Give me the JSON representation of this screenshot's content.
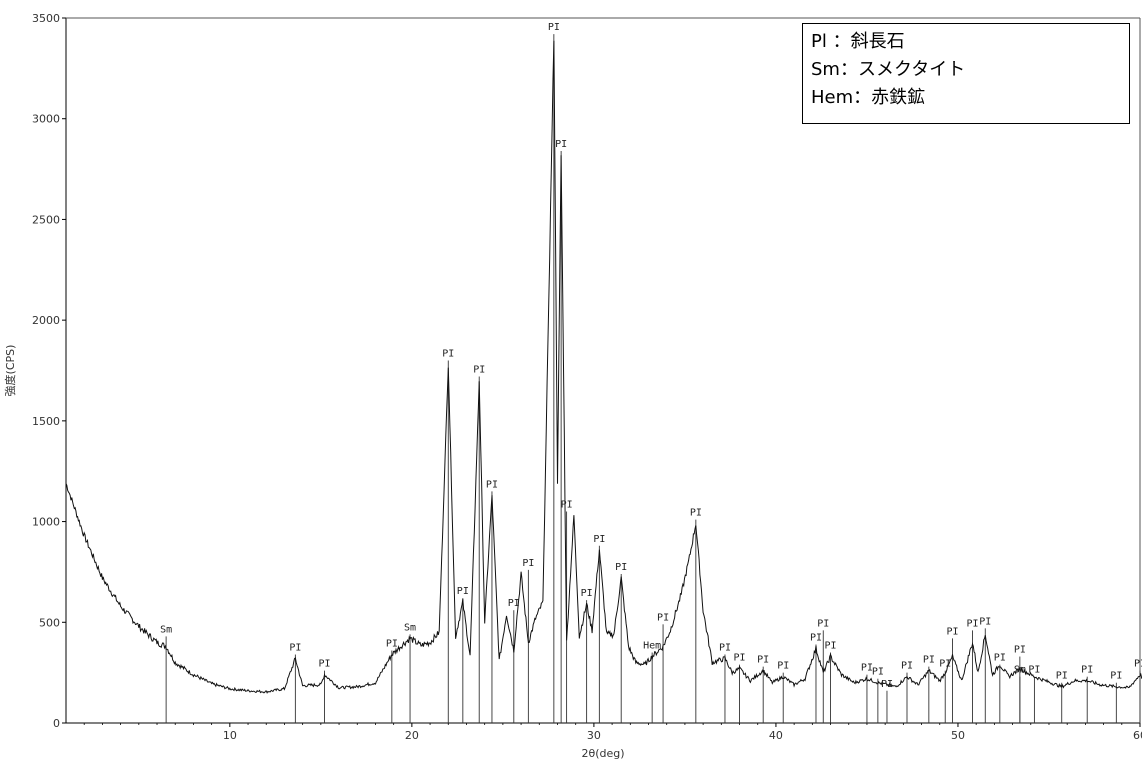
{
  "chart_data": {
    "type": "line",
    "title": "",
    "xlabel": "2θ(deg)",
    "ylabel": "強度(CPS)",
    "xlim": [
      1,
      60
    ],
    "ylim": [
      0,
      3500
    ],
    "x_ticks": [
      10,
      20,
      30,
      40,
      50,
      60
    ],
    "x_tick_labels": [
      "10",
      "20",
      "30",
      "40",
      "50",
      "60"
    ],
    "y_ticks": [
      0,
      500,
      1000,
      1500,
      2000,
      2500,
      3000,
      3500
    ],
    "y_tick_labels": [
      "0",
      "500",
      "1000",
      "1500",
      "2000",
      "2500",
      "3000",
      "3500"
    ],
    "legend": {
      "placement": "top-right",
      "entries": [
        "Pl ：斜長石",
        "Sm：スメクタイト",
        "Hem：赤鉄鉱"
      ]
    },
    "series": [
      {
        "x": [
          1,
          2,
          3,
          4,
          5,
          6,
          6.5,
          7,
          8,
          9,
          10,
          11,
          12,
          13,
          13.6,
          14,
          15,
          15.2,
          16,
          17,
          18,
          18.9,
          19.5,
          19.9,
          20.5,
          21,
          21.5,
          22.0,
          22.4,
          22.8,
          23.2,
          23.7,
          24.0,
          24.4,
          24.8,
          25.2,
          25.6,
          26.0,
          26.4,
          26.8,
          27.2,
          27.8,
          28.0,
          28.2,
          28.5,
          28.9,
          29.2,
          29.6,
          29.9,
          30.3,
          30.7,
          31.1,
          31.5,
          31.9,
          32.3,
          32.8,
          33.2,
          33.8,
          34.2,
          34.8,
          35.2,
          35.6,
          36.0,
          36.5,
          37.2,
          37.6,
          38.0,
          38.6,
          39.3,
          39.8,
          40.4,
          41.0,
          41.6,
          42.2,
          42.6,
          43.0,
          43.6,
          44.3,
          45.0,
          45.6,
          46.1,
          46.6,
          47.2,
          47.8,
          48.4,
          49.0,
          49.3,
          49.7,
          50.2,
          50.8,
          51.1,
          51.5,
          51.9,
          52.3,
          52.8,
          53.4,
          54.2,
          54.8,
          55.7,
          56.4,
          57.1,
          57.8,
          58.7,
          59.4,
          60.0,
          60.5
        ],
        "y": [
          1190,
          930,
          720,
          580,
          480,
          400,
          380,
          300,
          240,
          195,
          170,
          160,
          155,
          170,
          320,
          185,
          190,
          240,
          175,
          180,
          200,
          340,
          390,
          420,
          385,
          400,
          450,
          1780,
          430,
          600,
          330,
          1700,
          500,
          1130,
          310,
          540,
          360,
          740,
          400,
          520,
          600,
          3400,
          1200,
          2820,
          400,
          1030,
          430,
          590,
          460,
          860,
          440,
          440,
          720,
          380,
          300,
          290,
          330,
          380,
          460,
          640,
          800,
          990,
          560,
          300,
          320,
          250,
          270,
          210,
          260,
          200,
          230,
          190,
          220,
          370,
          250,
          330,
          240,
          200,
          220,
          200,
          190,
          180,
          230,
          190,
          260,
          210,
          250,
          330,
          210,
          400,
          250,
          440,
          240,
          290,
          230,
          270,
          230,
          210,
          180,
          210,
          210,
          190,
          180,
          175,
          240,
          185
        ]
      }
    ],
    "peak_labels": [
      {
        "text": "Sm",
        "x": 6.5,
        "y": 420
      },
      {
        "text": "PI",
        "x": 13.6,
        "y": 330
      },
      {
        "text": "PI",
        "x": 15.2,
        "y": 250
      },
      {
        "text": "PI",
        "x": 18.9,
        "y": 350
      },
      {
        "text": "Sm",
        "x": 19.9,
        "y": 430
      },
      {
        "text": "PI",
        "x": 22.0,
        "y": 1790
      },
      {
        "text": "PI",
        "x": 22.8,
        "y": 610
      },
      {
        "text": "PI",
        "x": 23.7,
        "y": 1710
      },
      {
        "text": "PI",
        "x": 24.4,
        "y": 1140
      },
      {
        "text": "PI",
        "x": 25.6,
        "y": 550
      },
      {
        "text": "PI",
        "x": 26.4,
        "y": 750
      },
      {
        "text": "PI",
        "x": 27.8,
        "y": 3410
      },
      {
        "text": "PI",
        "x": 28.2,
        "y": 2830
      },
      {
        "text": "PI",
        "x": 28.5,
        "y": 1040
      },
      {
        "text": "PI",
        "x": 29.6,
        "y": 600
      },
      {
        "text": "PI",
        "x": 30.3,
        "y": 870
      },
      {
        "text": "PI",
        "x": 31.5,
        "y": 730
      },
      {
        "text": "Hem",
        "x": 33.2,
        "y": 340
      },
      {
        "text": "PI",
        "x": 33.8,
        "y": 480
      },
      {
        "text": "PI",
        "x": 35.6,
        "y": 1000
      },
      {
        "text": "PI",
        "x": 37.2,
        "y": 330
      },
      {
        "text": "PI",
        "x": 38.0,
        "y": 280
      },
      {
        "text": "PI",
        "x": 39.3,
        "y": 270
      },
      {
        "text": "PI",
        "x": 40.4,
        "y": 240
      },
      {
        "text": "PI",
        "x": 42.2,
        "y": 380
      },
      {
        "text": "PI",
        "x": 42.6,
        "y": 450
      },
      {
        "text": "PI",
        "x": 43.0,
        "y": 340
      },
      {
        "text": "PI",
        "x": 45.0,
        "y": 230
      },
      {
        "text": "PI",
        "x": 45.6,
        "y": 210
      },
      {
        "text": "PI",
        "x": 46.1,
        "y": 150
      },
      {
        "text": "PI",
        "x": 47.2,
        "y": 240
      },
      {
        "text": "PI",
        "x": 48.4,
        "y": 270
      },
      {
        "text": "PI",
        "x": 49.3,
        "y": 250
      },
      {
        "text": "PI",
        "x": 49.7,
        "y": 410
      },
      {
        "text": "PI",
        "x": 50.8,
        "y": 450
      },
      {
        "text": "PI",
        "x": 51.5,
        "y": 460
      },
      {
        "text": "PI",
        "x": 52.3,
        "y": 280
      },
      {
        "text": "Sm",
        "x": 53.4,
        "y": 220
      },
      {
        "text": "PI",
        "x": 53.4,
        "y": 320
      },
      {
        "text": "PI",
        "x": 54.2,
        "y": 220
      },
      {
        "text": "PI",
        "x": 55.7,
        "y": 190
      },
      {
        "text": "PI",
        "x": 57.1,
        "y": 220
      },
      {
        "text": "PI",
        "x": 58.7,
        "y": 190
      },
      {
        "text": "PI",
        "x": 60.0,
        "y": 250
      }
    ]
  }
}
